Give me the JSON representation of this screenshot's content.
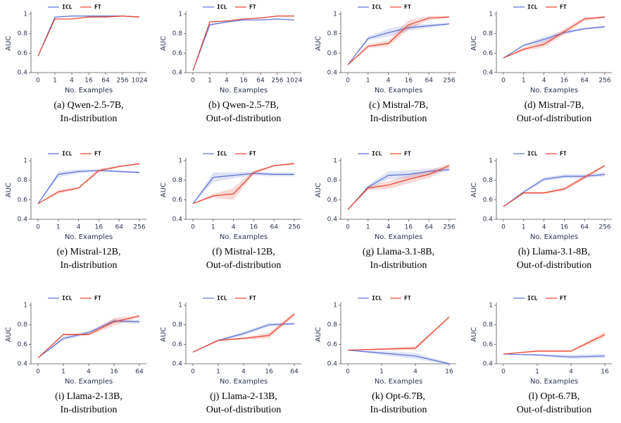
{
  "chart_data": [
    {
      "type": "line",
      "x_label": "No. Examples",
      "y_label": "AUC",
      "caption": [
        "(a) Qwen-2.5-7B,",
        "In-distribution"
      ],
      "categories": [
        "0",
        "1",
        "4",
        "16",
        "64",
        "256",
        "1024"
      ],
      "ylim": [
        0.4,
        1
      ],
      "yticks": [
        0.4,
        0.6,
        0.8,
        1
      ],
      "series": [
        {
          "name": "ICL",
          "color": "#5a6fd6",
          "values": [
            0.57,
            0.97,
            0.98,
            0.98,
            0.98,
            0.98,
            0.97
          ],
          "errors": [
            0,
            0.005,
            0.005,
            0.005,
            0.005,
            0.005,
            0.005
          ]
        },
        {
          "name": "FT",
          "color": "#e8412c",
          "values": [
            0.57,
            0.95,
            0.95,
            0.97,
            0.97,
            0.98,
            0.97
          ],
          "errors": [
            0,
            0.005,
            0.005,
            0.005,
            0.005,
            0.005,
            0.005
          ]
        }
      ]
    },
    {
      "type": "line",
      "x_label": "No. Examples",
      "y_label": "AUC",
      "caption": [
        "(b) Qwen-2.5-7B,",
        "Out-of-distribution"
      ],
      "categories": [
        "0",
        "1",
        "4",
        "16",
        "64",
        "256",
        "1024"
      ],
      "ylim": [
        0.4,
        1
      ],
      "yticks": [
        0.4,
        0.6,
        0.8,
        1
      ],
      "series": [
        {
          "name": "ICL",
          "color": "#5a6fd6",
          "values": [
            0.42,
            0.89,
            0.92,
            0.94,
            0.94,
            0.95,
            0.94
          ],
          "errors": [
            0,
            0.01,
            0.01,
            0.005,
            0.005,
            0.005,
            0.005
          ]
        },
        {
          "name": "FT",
          "color": "#e8412c",
          "values": [
            0.42,
            0.92,
            0.93,
            0.95,
            0.96,
            0.98,
            0.98
          ],
          "errors": [
            0,
            0.005,
            0.005,
            0.005,
            0.005,
            0.005,
            0.005
          ]
        }
      ]
    },
    {
      "type": "line",
      "x_label": "No. Examples",
      "y_label": "AUC",
      "caption": [
        "(c) Mistral-7B,",
        "In-distribution"
      ],
      "categories": [
        "0",
        "1",
        "4",
        "16",
        "64",
        "256"
      ],
      "ylim": [
        0.4,
        1
      ],
      "yticks": [
        0.4,
        0.6,
        0.8,
        1
      ],
      "series": [
        {
          "name": "ICL",
          "color": "#5a6fd6",
          "values": [
            0.48,
            0.75,
            0.81,
            0.86,
            0.88,
            0.9
          ],
          "errors": [
            0,
            0.02,
            0.04,
            0.03,
            0.02,
            0.01
          ]
        },
        {
          "name": "FT",
          "color": "#e8412c",
          "values": [
            0.48,
            0.67,
            0.7,
            0.89,
            0.96,
            0.97
          ],
          "errors": [
            0,
            0.02,
            0.03,
            0.05,
            0.02,
            0.01
          ]
        }
      ]
    },
    {
      "type": "line",
      "x_label": "No. Examples",
      "y_label": "AUC",
      "caption": [
        "(d) Mistral-7B,",
        "Out-of-distribution"
      ],
      "categories": [
        "0",
        "1",
        "4",
        "16",
        "64",
        "256"
      ],
      "ylim": [
        0.4,
        1
      ],
      "yticks": [
        0.4,
        0.6,
        0.8,
        1
      ],
      "series": [
        {
          "name": "ICL",
          "color": "#5a6fd6",
          "values": [
            0.55,
            0.68,
            0.74,
            0.81,
            0.85,
            0.87
          ],
          "errors": [
            0,
            0.01,
            0.03,
            0.02,
            0.01,
            0.01
          ]
        },
        {
          "name": "FT",
          "color": "#e8412c",
          "values": [
            0.55,
            0.64,
            0.69,
            0.82,
            0.95,
            0.97
          ],
          "errors": [
            0,
            0.02,
            0.03,
            0.03,
            0.02,
            0.01
          ]
        }
      ]
    },
    {
      "type": "line",
      "x_label": "No. Examples",
      "y_label": "AUC",
      "caption": [
        "(e) Mistral-12B,",
        "In-distribution"
      ],
      "categories": [
        "0",
        "1",
        "4",
        "16",
        "64",
        "256"
      ],
      "ylim": [
        0.4,
        1
      ],
      "yticks": [
        0.4,
        0.6,
        0.8,
        1
      ],
      "series": [
        {
          "name": "ICL",
          "color": "#5a6fd6",
          "values": [
            0.56,
            0.86,
            0.89,
            0.9,
            0.89,
            0.88
          ],
          "errors": [
            0,
            0.03,
            0.02,
            0.01,
            0.01,
            0.01
          ]
        },
        {
          "name": "FT",
          "color": "#e8412c",
          "values": [
            0.56,
            0.68,
            0.72,
            0.9,
            0.94,
            0.97
          ],
          "errors": [
            0,
            0.02,
            0.01,
            0.02,
            0.01,
            0.01
          ]
        }
      ]
    },
    {
      "type": "line",
      "x_label": "No. Examples",
      "y_label": "AUC",
      "caption": [
        "(f) Mistral-12B,",
        "Out-of-distribution"
      ],
      "categories": [
        "0",
        "1",
        "4",
        "16",
        "64",
        "256"
      ],
      "ylim": [
        0.4,
        1
      ],
      "yticks": [
        0.4,
        0.6,
        0.8,
        1
      ],
      "series": [
        {
          "name": "ICL",
          "color": "#5a6fd6",
          "values": [
            0.56,
            0.83,
            0.85,
            0.87,
            0.86,
            0.86
          ],
          "errors": [
            0,
            0.05,
            0.03,
            0.02,
            0.02,
            0.02
          ]
        },
        {
          "name": "FT",
          "color": "#e8412c",
          "values": [
            0.56,
            0.64,
            0.66,
            0.88,
            0.95,
            0.97
          ],
          "errors": [
            0,
            0.02,
            0.06,
            0.02,
            0.01,
            0.01
          ]
        }
      ]
    },
    {
      "type": "line",
      "x_label": "No. Examples",
      "y_label": "AUC",
      "caption": [
        "(g) Llama-3.1-8B,",
        "In-distribution"
      ],
      "categories": [
        "0",
        "1",
        "4",
        "16",
        "64",
        "256"
      ],
      "ylim": [
        0.4,
        1
      ],
      "yticks": [
        0.4,
        0.6,
        0.8,
        1
      ],
      "series": [
        {
          "name": "ICL",
          "color": "#5a6fd6",
          "values": [
            0.5,
            0.73,
            0.85,
            0.86,
            0.89,
            0.91
          ],
          "errors": [
            0,
            0.02,
            0.04,
            0.04,
            0.03,
            0.02
          ]
        },
        {
          "name": "FT",
          "color": "#e8412c",
          "values": [
            0.5,
            0.72,
            0.75,
            0.81,
            0.86,
            0.95
          ],
          "errors": [
            0,
            0.02,
            0.04,
            0.04,
            0.04,
            0.02
          ]
        }
      ]
    },
    {
      "type": "line",
      "x_label": "No. Examples",
      "y_label": "AUC",
      "caption": [
        "(h) Llama-3.1-8B,",
        "Out-of-distribution"
      ],
      "categories": [
        "0",
        "1",
        "4",
        "16",
        "64",
        "256"
      ],
      "ylim": [
        0.4,
        1
      ],
      "yticks": [
        0.4,
        0.6,
        0.8,
        1
      ],
      "series": [
        {
          "name": "ICL",
          "color": "#5a6fd6",
          "values": [
            0.53,
            0.68,
            0.81,
            0.84,
            0.84,
            0.86
          ],
          "errors": [
            0,
            0.01,
            0.02,
            0.02,
            0.02,
            0.02
          ]
        },
        {
          "name": "FT",
          "color": "#e8412c",
          "values": [
            0.53,
            0.67,
            0.67,
            0.71,
            0.83,
            0.95
          ],
          "errors": [
            0,
            0.01,
            0.01,
            0.02,
            0.02,
            0.01
          ]
        }
      ]
    },
    {
      "type": "line",
      "x_label": "No. Examples",
      "y_label": "AUC",
      "caption": [
        "(i) Llama-2-13B,",
        "In-distribution"
      ],
      "categories": [
        "0",
        "1",
        "4",
        "16",
        "64"
      ],
      "ylim": [
        0.4,
        1
      ],
      "yticks": [
        0.4,
        0.6,
        0.8,
        1
      ],
      "series": [
        {
          "name": "ICL",
          "color": "#5a6fd6",
          "values": [
            0.46,
            0.66,
            0.72,
            0.84,
            0.83
          ],
          "errors": [
            0,
            0.02,
            0.02,
            0.02,
            0.02
          ]
        },
        {
          "name": "FT",
          "color": "#e8412c",
          "values": [
            0.46,
            0.7,
            0.7,
            0.83,
            0.89
          ],
          "errors": [
            0,
            0.01,
            0.01,
            0.04,
            0.01
          ]
        }
      ]
    },
    {
      "type": "line",
      "x_label": "No. Examples",
      "y_label": "AUC",
      "caption": [
        "(j) Llama-2-13B,",
        "Out-of-distribution"
      ],
      "categories": [
        "0",
        "1",
        "4",
        "16",
        "64"
      ],
      "ylim": [
        0.4,
        1
      ],
      "yticks": [
        0.4,
        0.6,
        0.8,
        1
      ],
      "series": [
        {
          "name": "ICL",
          "color": "#5a6fd6",
          "values": [
            0.52,
            0.64,
            0.71,
            0.8,
            0.81
          ],
          "errors": [
            0,
            0.01,
            0.02,
            0.02,
            0.01
          ]
        },
        {
          "name": "FT",
          "color": "#e8412c",
          "values": [
            0.52,
            0.64,
            0.66,
            0.69,
            0.91
          ],
          "errors": [
            0,
            0.01,
            0.01,
            0.03,
            0.02
          ]
        }
      ]
    },
    {
      "type": "line",
      "x_label": "No. Examples",
      "y_label": "AUC",
      "caption": [
        "(k) Opt-6.7B,",
        "In-distribution"
      ],
      "categories": [
        "0",
        "1",
        "4",
        "16"
      ],
      "ylim": [
        0.4,
        1
      ],
      "yticks": [
        0.4,
        0.6,
        0.8,
        1
      ],
      "series": [
        {
          "name": "ICL",
          "color": "#5a6fd6",
          "values": [
            0.54,
            0.51,
            0.48,
            0.4
          ],
          "errors": [
            0,
            0.02,
            0.03,
            0.01
          ]
        },
        {
          "name": "FT",
          "color": "#e8412c",
          "values": [
            0.54,
            0.55,
            0.56,
            0.88
          ],
          "errors": [
            0,
            0.01,
            0.02,
            0.01
          ]
        }
      ]
    },
    {
      "type": "line",
      "x_label": "No. Examples",
      "y_label": "AUC",
      "caption": [
        "(l) Opt-6.7B,",
        "Out-of-distribution"
      ],
      "categories": [
        "0",
        "1",
        "4",
        "16"
      ],
      "ylim": [
        0.4,
        1
      ],
      "yticks": [
        0.4,
        0.6,
        0.8,
        1
      ],
      "series": [
        {
          "name": "ICL",
          "color": "#5a6fd6",
          "values": [
            0.5,
            0.49,
            0.47,
            0.48
          ],
          "errors": [
            0,
            0.01,
            0.02,
            0.02
          ]
        },
        {
          "name": "FT",
          "color": "#e8412c",
          "values": [
            0.5,
            0.53,
            0.53,
            0.7
          ],
          "errors": [
            0,
            0.01,
            0.01,
            0.03
          ]
        }
      ]
    }
  ]
}
